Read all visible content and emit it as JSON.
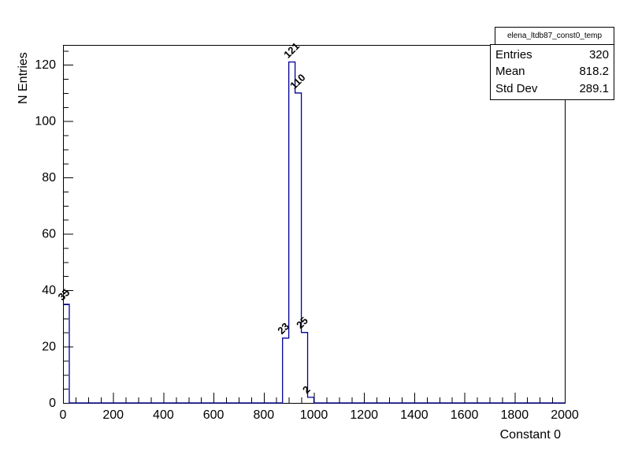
{
  "canvas": {
    "background": "#ffffff"
  },
  "title_box": {
    "text": "elena_ltdb87_const0_temp"
  },
  "stats_box": {
    "rows": [
      {
        "label": "Entries",
        "value": "320"
      },
      {
        "label": "Mean",
        "value": "818.2"
      },
      {
        "label": "Std Dev",
        "value": "289.1"
      }
    ]
  },
  "chart_data": {
    "type": "bar",
    "subtype": "root-histogram-step-outline",
    "title": "elena_ltdb87_const0_temp",
    "xlabel": "Constant 0",
    "ylabel": "N Entries",
    "xlim": [
      0,
      2000
    ],
    "ylim": [
      0,
      127.05
    ],
    "x_tick_step": 200,
    "x_minor_tick_step": 50,
    "y_tick_step": 20,
    "y_minor_tick_step": 5,
    "x_tick_labels": [
      "0",
      "200",
      "400",
      "600",
      "800",
      "1000",
      "1200",
      "1400",
      "1600",
      "1800",
      "2000"
    ],
    "y_tick_labels": [
      "0",
      "20",
      "40",
      "60",
      "80",
      "100",
      "120"
    ],
    "bin_width": 25,
    "bins": [
      {
        "x0": 0,
        "x1": 25,
        "count": 35
      },
      {
        "x0": 875,
        "x1": 900,
        "count": 23
      },
      {
        "x0": 900,
        "x1": 925,
        "count": 121
      },
      {
        "x0": 925,
        "x1": 950,
        "count": 110
      },
      {
        "x0": 950,
        "x1": 975,
        "count": 25
      },
      {
        "x0": 975,
        "x1": 1000,
        "count": 2
      }
    ],
    "bin_value_labels": [
      "35",
      "23",
      "121",
      "110",
      "25",
      "2"
    ],
    "line_color": "#000099",
    "axis_color": "#000000",
    "grid": false,
    "legend_position": "none",
    "stats": {
      "entries": "320",
      "mean": "818.2",
      "std_dev": "289.1"
    }
  }
}
